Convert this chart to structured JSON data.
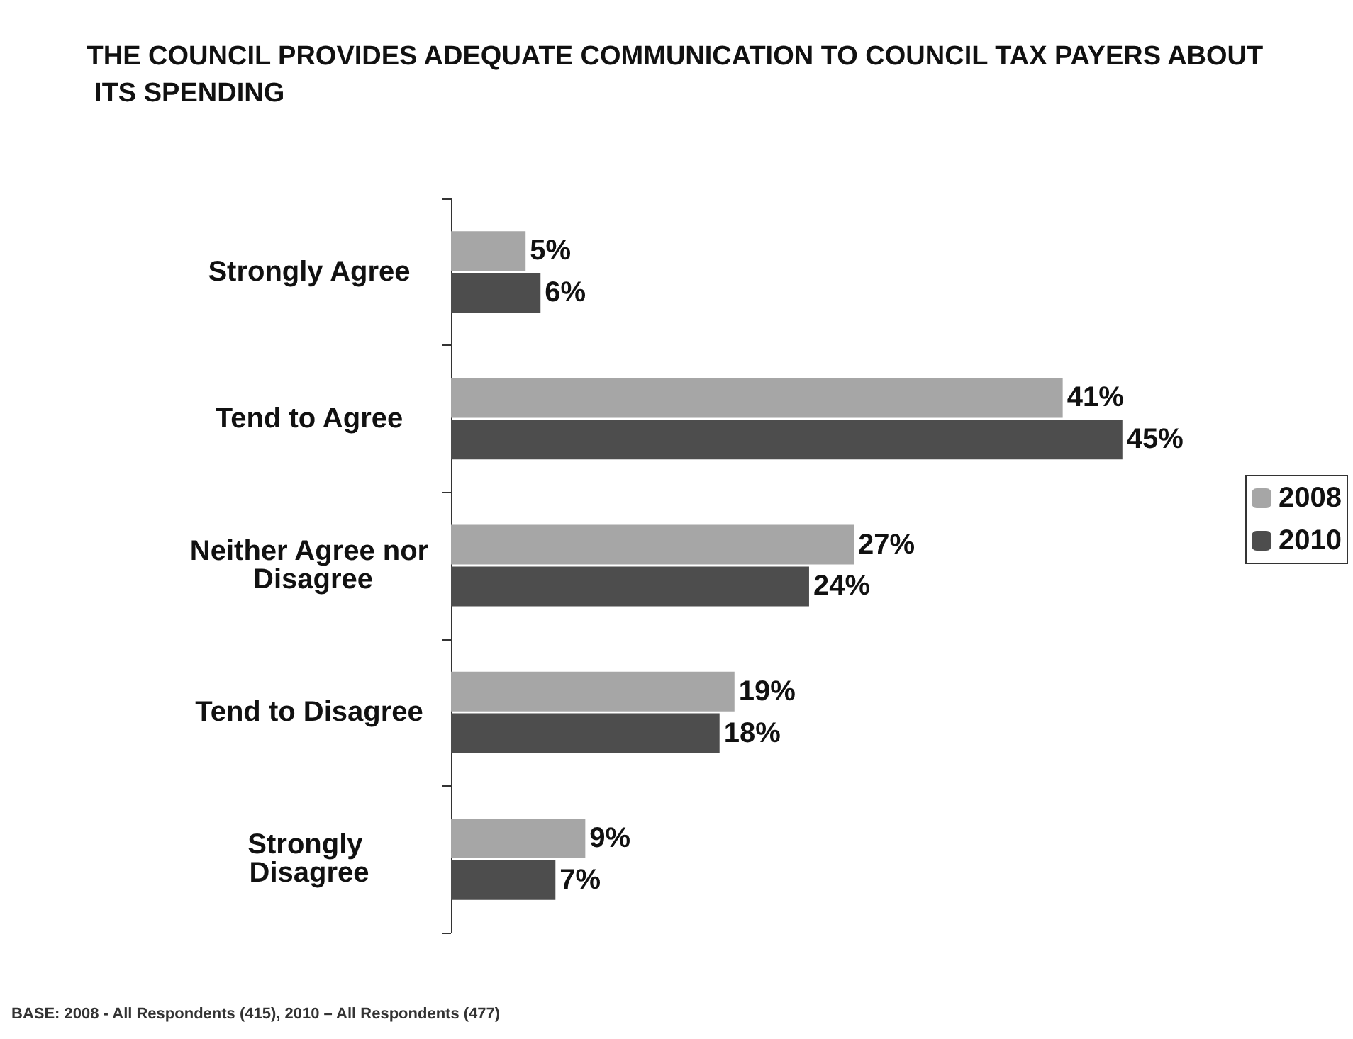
{
  "chart_data": {
    "type": "bar",
    "orientation": "horizontal",
    "title": "THE COUNCIL PROVIDES ADEQUATE COMMUNICATION TO COUNCIL TAX PAYERS ABOUT ITS SPENDING",
    "categories": [
      "Strongly Agree",
      "Tend to Agree",
      "Neither Agree nor Disagree",
      "Tend to Disagree",
      "Strongly Disagree"
    ],
    "series": [
      {
        "name": "2008",
        "color": "#a6a6a6",
        "values": [
          5,
          41,
          27,
          19,
          9
        ],
        "value_labels": [
          "5%",
          "41%",
          "27%",
          "19%",
          "9%"
        ]
      },
      {
        "name": "2010",
        "color": "#4d4d4d",
        "values": [
          6,
          45,
          24,
          18,
          7
        ],
        "value_labels": [
          "6%",
          "45%",
          "24%",
          "18%",
          "7%"
        ]
      }
    ],
    "legend": "right",
    "annotations": [
      "BASE: 2008 - All Respondents (415), 2010 – All Respondents (477)"
    ]
  }
}
